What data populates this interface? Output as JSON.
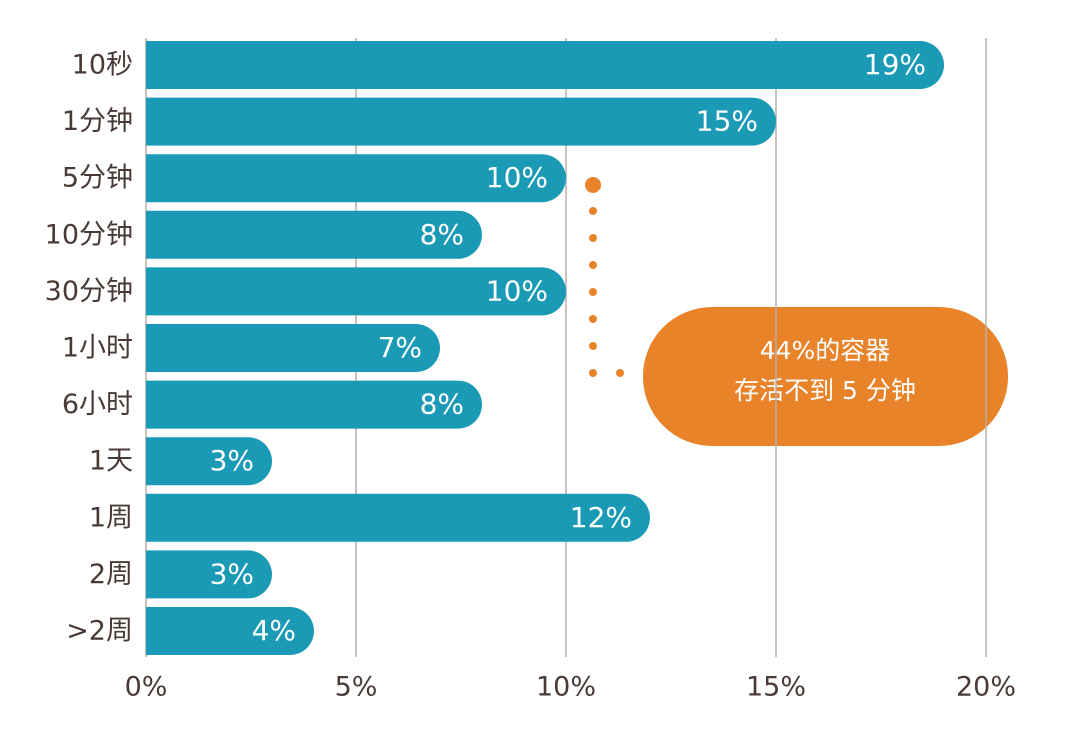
{
  "chart_data": {
    "type": "bar",
    "orientation": "horizontal",
    "color": "#1b9ab6",
    "categories": [
      "10秒",
      "1分钟",
      "5分钟",
      "10分钟",
      "30分钟",
      "1小时",
      "6小时",
      "1天",
      "1周",
      "2周",
      ">2周"
    ],
    "values": [
      19,
      15,
      10,
      8,
      10,
      7,
      8,
      3,
      12,
      3,
      4
    ],
    "value_labels": [
      "19%",
      "15%",
      "10%",
      "8%",
      "10%",
      "7%",
      "8%",
      "3%",
      "12%",
      "3%",
      "4%"
    ],
    "xlim": [
      0,
      20
    ],
    "xticks": [
      {
        "value": 0,
        "label": "0%"
      },
      {
        "value": 5,
        "label": "5%"
      },
      {
        "value": 10,
        "label": "10%"
      },
      {
        "value": 15,
        "label": "15%"
      },
      {
        "value": 20,
        "label": "20%"
      }
    ],
    "grid": true,
    "annotation": [
      "44%的容器",
      "存活不到 5 分钟"
    ]
  }
}
